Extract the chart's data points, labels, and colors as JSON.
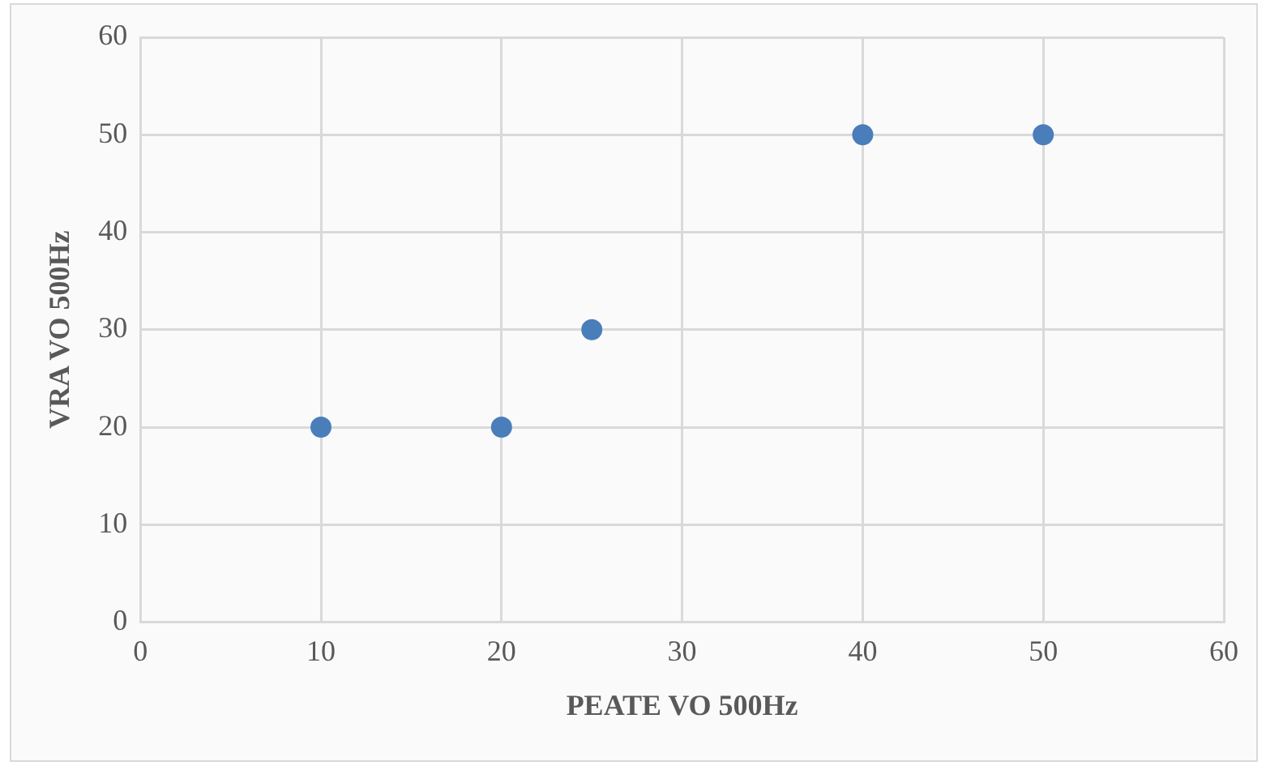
{
  "chart_data": {
    "type": "scatter",
    "xlabel": "PEATE VO 500Hz",
    "ylabel": "VRA VO 500Hz",
    "x": [
      10,
      20,
      25,
      40,
      50
    ],
    "series": [
      {
        "color": "#4a7ebb",
        "values": [
          20,
          20,
          30,
          50,
          50
        ]
      }
    ],
    "xlim": [
      0,
      60
    ],
    "xticks": [
      0,
      10,
      20,
      30,
      40,
      50,
      60
    ],
    "ylim": [
      0,
      60
    ],
    "yticks": [
      0,
      10,
      20,
      30,
      40,
      50,
      60
    ],
    "grid": true,
    "marker": "circle"
  }
}
